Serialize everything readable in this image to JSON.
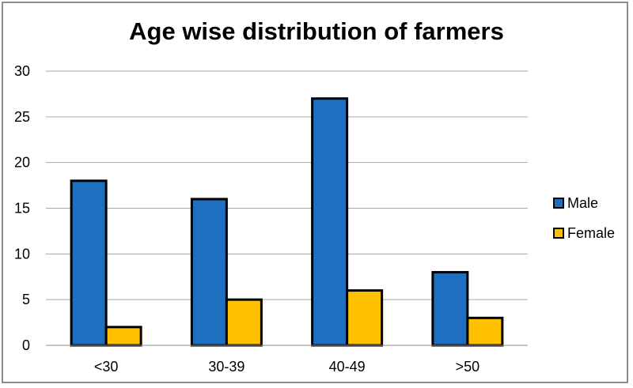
{
  "chart_data": {
    "type": "bar",
    "title": "Age wise distribution of farmers",
    "categories": [
      "<30",
      "30-39",
      "40-49",
      ">50"
    ],
    "series": [
      {
        "name": "Male",
        "values": [
          18,
          16,
          27,
          8
        ],
        "color": "#1f6fc0"
      },
      {
        "name": "Female",
        "values": [
          2,
          5,
          6,
          3
        ],
        "color": "#ffc000"
      }
    ],
    "ylim": [
      0,
      30
    ],
    "yticks": [
      0,
      5,
      10,
      15,
      20,
      25,
      30
    ],
    "grid": true,
    "legend_position": "right"
  }
}
